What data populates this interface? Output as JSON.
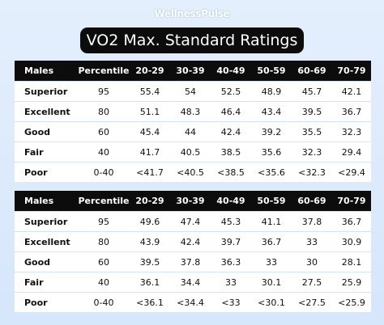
{
  "brand": "WellnessPulse",
  "title": "VO2 Max. Standard Ratings",
  "tables": [
    {
      "header": [
        "Males",
        "Percentile",
        "20-29",
        "30-39",
        "40-49",
        "50-59",
        "60-69",
        "70-79"
      ],
      "rows": [
        [
          "Superior",
          "95",
          "55.4",
          "54",
          "52.5",
          "48.9",
          "45.7",
          "42.1"
        ],
        [
          "Excellent",
          "80",
          "51.1",
          "48.3",
          "46.4",
          "43.4",
          "39.5",
          "36.7"
        ],
        [
          "Good",
          "60",
          "45.4",
          "44",
          "42.4",
          "39.2",
          "35.5",
          "32.3"
        ],
        [
          "Fair",
          "40",
          "41.7",
          "40.5",
          "38.5",
          "35.6",
          "32.3",
          "29.4"
        ],
        [
          "Poor",
          "0-40",
          "<41.7",
          "<40.5",
          "<38.5",
          "<35.6",
          "<32.3",
          "<29.4"
        ]
      ]
    },
    {
      "header": [
        "Males",
        "Percentile",
        "20-29",
        "30-39",
        "40-49",
        "50-59",
        "60-69",
        "70-79"
      ],
      "rows": [
        [
          "Superior",
          "95",
          "49.6",
          "47.4",
          "45.3",
          "41.1",
          "37.8",
          "36.7"
        ],
        [
          "Excellent",
          "80",
          "43.9",
          "42.4",
          "39.7",
          "36.7",
          "33",
          "30.9"
        ],
        [
          "Good",
          "60",
          "39.5",
          "37.8",
          "36.3",
          "33",
          "30",
          "28.1"
        ],
        [
          "Fair",
          "40",
          "36.1",
          "34.4",
          "33",
          "30.1",
          "27.5",
          "25.9"
        ],
        [
          "Poor",
          "0-40",
          "<36.1",
          "<34.4",
          "<33",
          "<30.1",
          "<27.5",
          "<25.9"
        ]
      ]
    }
  ]
}
